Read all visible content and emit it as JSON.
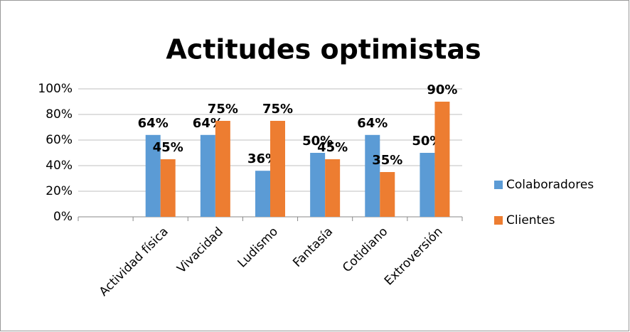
{
  "chart_data": {
    "type": "bar",
    "title": "Actitudes optimistas",
    "categories": [
      null,
      "Actividad física",
      "Vivacidad",
      "Ludismo",
      "Fantasía",
      "Cotidiano",
      "Extroversión"
    ],
    "series": [
      {
        "name": "Colaboradores",
        "color": "#5b9bd5",
        "values": [
          null,
          64,
          64,
          36,
          50,
          64,
          50
        ],
        "value_labels": [
          null,
          "64%",
          "64%",
          "36%",
          "50%",
          "64%",
          "50%"
        ]
      },
      {
        "name": "Clientes",
        "color": "#ed7d31",
        "values": [
          null,
          45,
          75,
          75,
          45,
          35,
          90
        ],
        "value_labels": [
          null,
          "45%",
          "75%",
          "75%",
          "45%",
          "35%",
          "90%"
        ]
      }
    ],
    "ylim": [
      0,
      100
    ],
    "yticks": [
      {
        "value": 0,
        "label": "0%"
      },
      {
        "value": 20,
        "label": "20%"
      },
      {
        "value": 40,
        "label": "40%"
      },
      {
        "value": 60,
        "label": "60%"
      },
      {
        "value": 80,
        "label": "80%"
      },
      {
        "value": 100,
        "label": "100%"
      }
    ],
    "grid": true,
    "legend": "right"
  }
}
